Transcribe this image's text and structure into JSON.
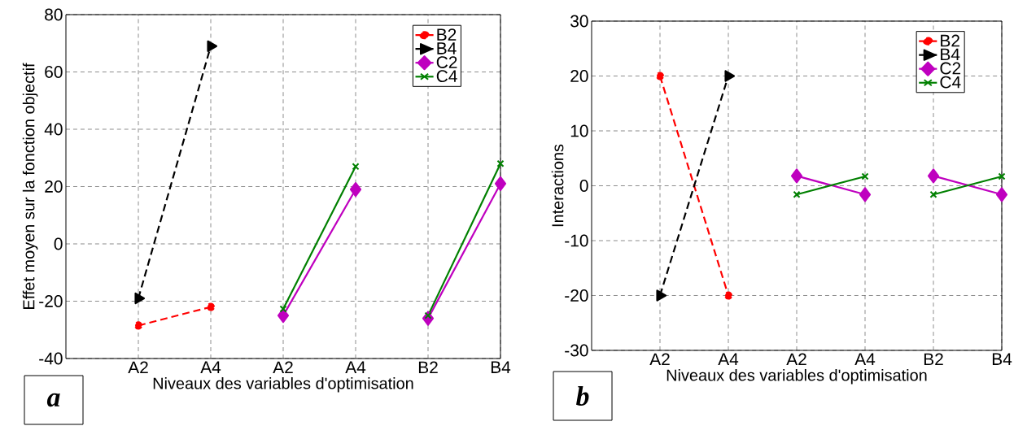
{
  "chart_data": [
    {
      "type": "line",
      "xlabel": "Niveaux des variables d'optimisation",
      "ylabel": "Effet moyen sur la fonction objectif",
      "categories": [
        "A2",
        "A4",
        "A2",
        "A4",
        "B2",
        "B4"
      ],
      "series": [
        {
          "name": "B2",
          "color": "#ff0000",
          "marker": "circle",
          "line_style": "dashed",
          "values": [
            -28.5,
            -22,
            null,
            null,
            null,
            null
          ]
        },
        {
          "name": "B4",
          "color": "#000000",
          "marker": "triangle",
          "line_style": "dashed",
          "values": [
            -19,
            69,
            null,
            null,
            null,
            null
          ]
        },
        {
          "name": "C2",
          "color": "#bf00bf",
          "marker": "diamond",
          "line_style": "solid",
          "values": [
            null,
            null,
            -25,
            19,
            null,
            null
          ]
        },
        {
          "name": "C4",
          "color": "#008000",
          "marker": "cross",
          "line_style": "solid",
          "values": [
            null,
            null,
            -22.7,
            27,
            null,
            null
          ]
        },
        {
          "color": "#bf00bf",
          "marker": "diamond",
          "line_style": "solid",
          "values": [
            null,
            null,
            null,
            null,
            -26,
            21
          ]
        },
        {
          "color": "#008000",
          "marker": "cross",
          "line_style": "solid",
          "values": [
            null,
            null,
            null,
            null,
            -25,
            28
          ]
        }
      ],
      "ylim": [
        -40,
        80
      ],
      "yticks": [
        -40,
        -20,
        0,
        20,
        40,
        60,
        80
      ],
      "grid": true,
      "legend": "top right",
      "annotations": [
        "a"
      ]
    },
    {
      "type": "line",
      "xlabel": "Niveaux des variables d'optimisation",
      "ylabel": "Interactions",
      "categories": [
        "A2",
        "A4",
        "A2",
        "A4",
        "B2",
        "B4"
      ],
      "series": [
        {
          "name": "B2",
          "color": "#ff0000",
          "marker": "circle",
          "line_style": "dashed",
          "values": [
            20,
            -20,
            null,
            null,
            null,
            null
          ]
        },
        {
          "name": "B4",
          "color": "#000000",
          "marker": "triangle",
          "line_style": "dashed",
          "values": [
            -20,
            20,
            null,
            null,
            null,
            null
          ]
        },
        {
          "name": "C2",
          "color": "#bf00bf",
          "marker": "diamond",
          "line_style": "solid",
          "values": [
            null,
            null,
            1.8,
            -1.6,
            null,
            null
          ]
        },
        {
          "name": "C4",
          "color": "#008000",
          "marker": "cross",
          "line_style": "solid",
          "values": [
            null,
            null,
            -1.6,
            1.7,
            null,
            null
          ]
        },
        {
          "color": "#bf00bf",
          "marker": "diamond",
          "line_style": "solid",
          "values": [
            null,
            null,
            null,
            null,
            1.8,
            -1.6
          ]
        },
        {
          "color": "#008000",
          "marker": "cross",
          "line_style": "solid",
          "values": [
            null,
            null,
            null,
            null,
            -1.6,
            1.7
          ]
        }
      ],
      "ylim": [
        -30,
        30
      ],
      "yticks": [
        -30,
        -20,
        -10,
        0,
        10,
        20,
        30
      ],
      "grid": true,
      "legend": "top right",
      "annotations": [
        "b"
      ]
    }
  ]
}
